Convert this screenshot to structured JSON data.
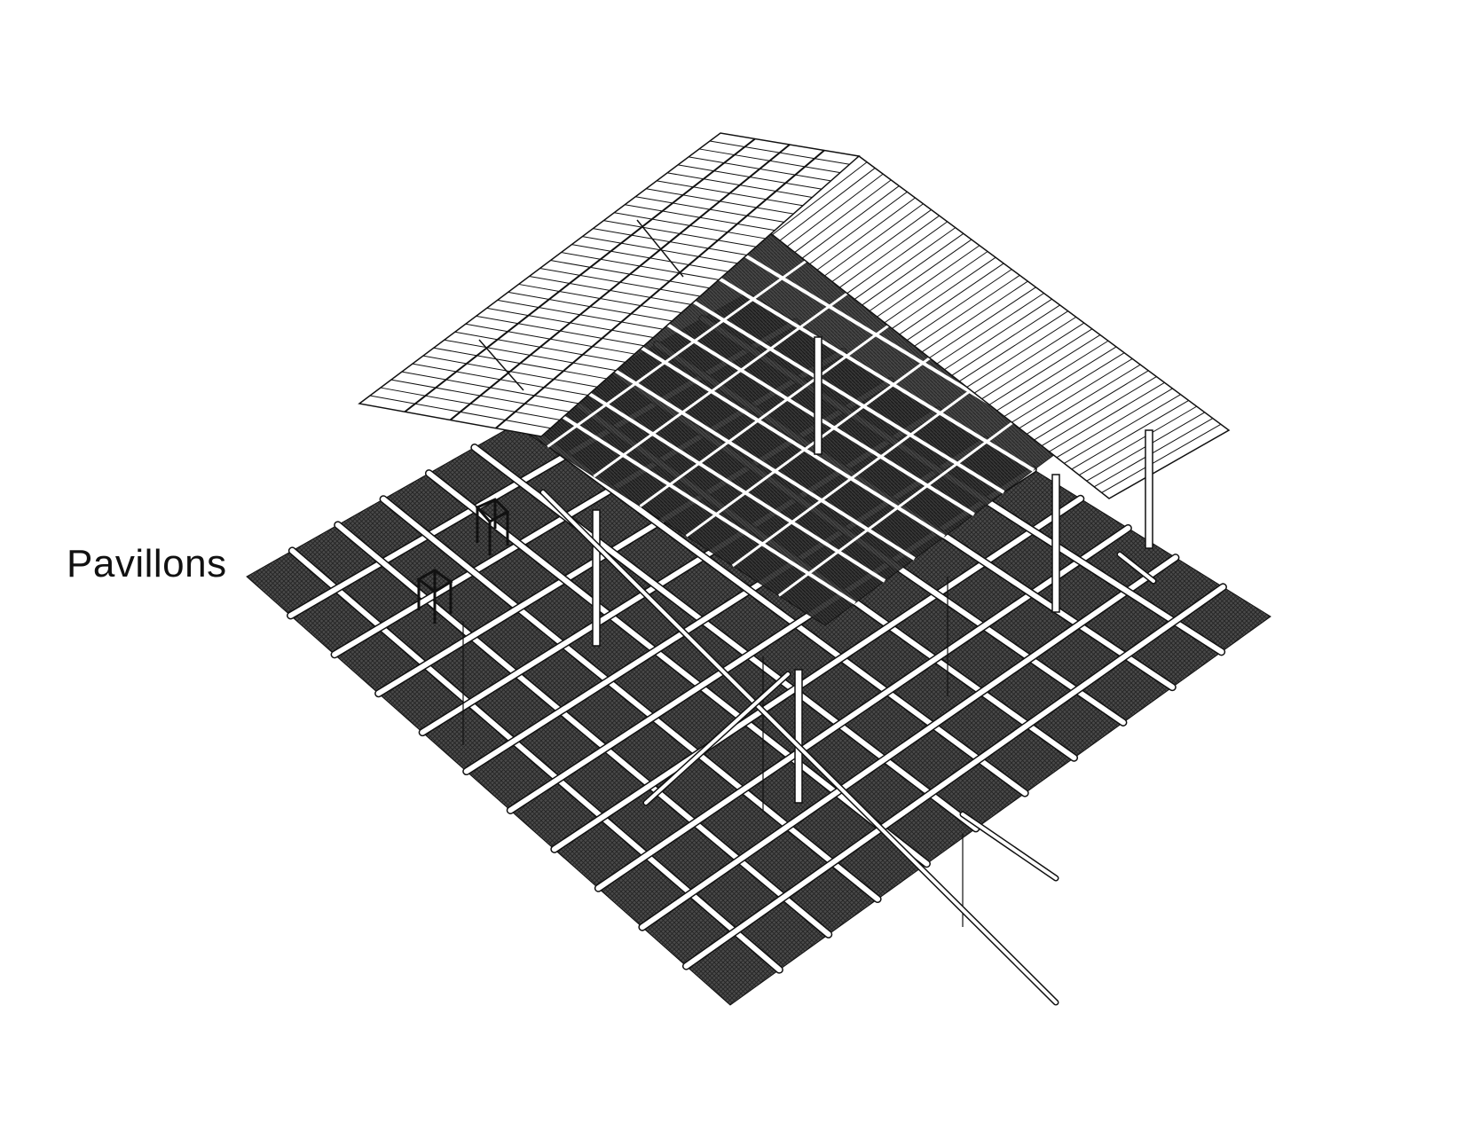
{
  "diagram": {
    "title": "Pavillons",
    "style": "axonometric line drawing",
    "components": [
      "floor-grid",
      "roof-left-slope",
      "roof-right-slope",
      "roof-shading-mesh",
      "columns",
      "side-table",
      "stool",
      "ground-rails"
    ]
  },
  "colors": {
    "background": "#ffffff",
    "line": "#111111",
    "floor": "#3e3e3e",
    "mesh": "#2a2a2a",
    "roof": "#ffffff"
  }
}
